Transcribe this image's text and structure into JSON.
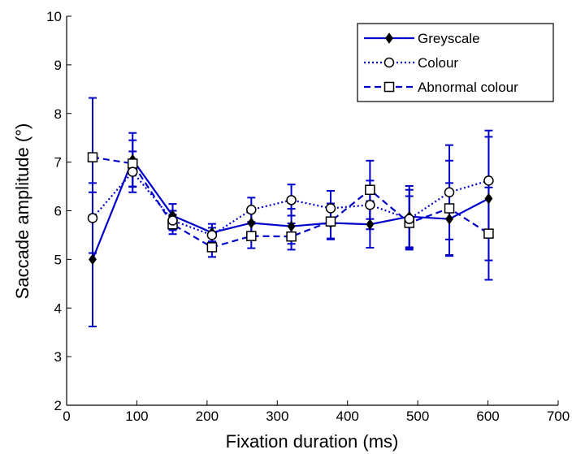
{
  "chart_data": {
    "type": "line",
    "xlabel": "Fixation duration (ms)",
    "ylabel": "Saccade amplitude (°)",
    "xlim": [
      0,
      700
    ],
    "ylim": [
      2,
      10
    ],
    "xticks": [
      "0",
      "100",
      "200",
      "300",
      "400",
      "500",
      "600",
      "700"
    ],
    "yticks": [
      "2",
      "3",
      "4",
      "5",
      "6",
      "7",
      "8",
      "9",
      "10"
    ],
    "grid": false,
    "legend_position": "top-right",
    "series_color": "#0000cc",
    "x": [
      37,
      94,
      151,
      207,
      263,
      320,
      376,
      432,
      488,
      545,
      601
    ],
    "series": [
      {
        "name": "Greyscale",
        "line_style": "solid",
        "marker": "filled-diamond",
        "values": [
          5.0,
          7.05,
          5.9,
          5.55,
          5.75,
          5.68,
          5.75,
          5.72,
          5.88,
          5.83,
          6.25
        ],
        "errors": [
          1.38,
          0.55,
          0.24,
          0.18,
          0.3,
          0.36,
          0.32,
          0.48,
          0.63,
          0.74,
          1.27
        ]
      },
      {
        "name": "Colour",
        "line_style": "dotted",
        "marker": "open-circle",
        "values": [
          5.85,
          6.8,
          5.8,
          5.5,
          6.02,
          6.22,
          6.05,
          6.12,
          5.83,
          6.38,
          6.62
        ],
        "errors": [
          0.72,
          0.42,
          0.2,
          0.15,
          0.25,
          0.32,
          0.36,
          0.5,
          0.6,
          0.97,
          1.03
        ]
      },
      {
        "name": "Abnormal colour",
        "line_style": "dashed",
        "marker": "open-square",
        "values": [
          7.1,
          6.97,
          5.72,
          5.25,
          5.48,
          5.47,
          5.78,
          6.43,
          5.75,
          6.05,
          5.53
        ],
        "errors": [
          1.22,
          0.48,
          0.2,
          0.2,
          0.25,
          0.27,
          0.37,
          0.6,
          0.55,
          0.98,
          0.95
        ]
      }
    ]
  }
}
